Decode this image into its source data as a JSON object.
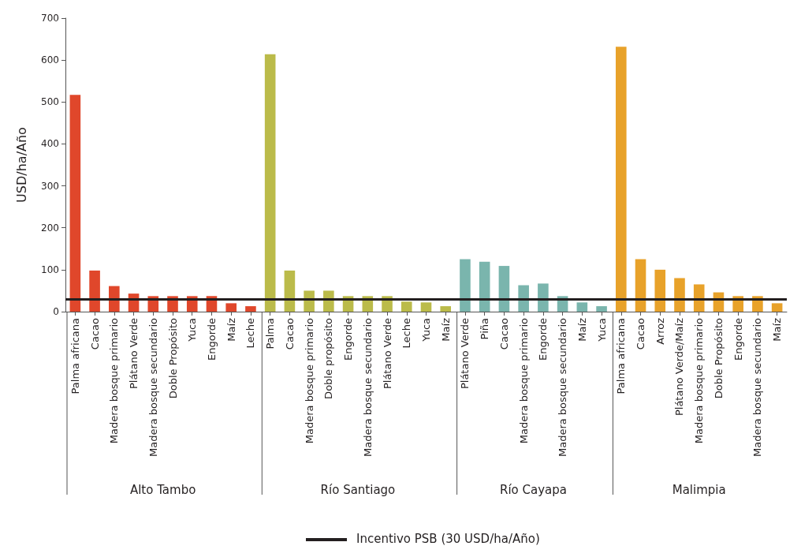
{
  "chart_data": {
    "type": "bar",
    "ylabel": "USD/ha/Año",
    "stacked": true,
    "grid": false,
    "legend": "bottom",
    "categories": [
      "Palma africana",
      "Cacao",
      "Madera bosque primario",
      "Plátano Verde",
      "Madera bosque secundario",
      "Doble Propósito",
      "Yuca",
      "Engorde",
      "Maíz",
      "Leche",
      "Palma",
      "Cacao",
      "Madera bosque primario",
      "Doble propósito",
      "Engorde",
      "Madera bosque secundario",
      "Plátano Verde",
      "Leche",
      "Yuca",
      "Maíz",
      "Plátano Verde",
      "Piña",
      "Cacao",
      "Madera bosque primario",
      "Engorde",
      "Madera bosque secundario",
      "Maíz",
      "Yuca",
      "Palma africana",
      "Cacao",
      "Arroz",
      "Plátano Verde/Maíz",
      "Madera bosque primario",
      "Doble Propósito",
      "Engorde",
      "Madera bosque secundario",
      "Maíz"
    ],
    "series": [
      {
        "color": "#e0472b",
        "values": [
          517,
          98,
          61,
          43,
          37,
          37,
          37,
          37,
          20,
          13,
          null,
          null,
          null,
          null,
          null,
          null,
          null,
          null,
          null,
          null,
          null,
          null,
          null,
          null,
          null,
          null,
          null,
          null,
          null,
          null,
          null,
          null,
          null,
          null,
          null,
          null,
          null
        ]
      },
      {
        "color": "#bbbb4a",
        "values": [
          null,
          null,
          null,
          null,
          null,
          null,
          null,
          null,
          null,
          null,
          614,
          98,
          50,
          50,
          37,
          37,
          37,
          24,
          22,
          13,
          null,
          null,
          null,
          null,
          null,
          null,
          null,
          null,
          null,
          null,
          null,
          null,
          null,
          null,
          null,
          null,
          null
        ]
      },
      {
        "color": "#7ab5ad",
        "values": [
          null,
          null,
          null,
          null,
          null,
          null,
          null,
          null,
          null,
          null,
          null,
          null,
          null,
          null,
          null,
          null,
          null,
          null,
          null,
          null,
          125,
          119,
          109,
          63,
          67,
          37,
          22,
          13,
          null,
          null,
          null,
          null,
          null,
          null,
          null,
          null,
          null
        ]
      },
      {
        "color": "#e8a22a",
        "values": [
          null,
          null,
          null,
          null,
          null,
          null,
          null,
          null,
          null,
          null,
          null,
          null,
          null,
          null,
          null,
          null,
          null,
          null,
          null,
          null,
          null,
          null,
          null,
          null,
          null,
          null,
          null,
          null,
          632,
          125,
          100,
          80,
          65,
          46,
          37,
          37,
          20
        ]
      }
    ],
    "annotations": [
      "Alto Tambo",
      "Río Santiago",
      "Río Cayapa",
      "Malimpia"
    ],
    "ylim": [
      0,
      700
    ],
    "yticks": [
      0,
      100,
      200,
      300,
      400,
      500,
      600,
      700
    ],
    "ref_lines": [
      {
        "axis": "y",
        "value": 30,
        "label": "Incentivo PSB (30 USD/ha/Año)",
        "color": "#231f20"
      }
    ]
  }
}
